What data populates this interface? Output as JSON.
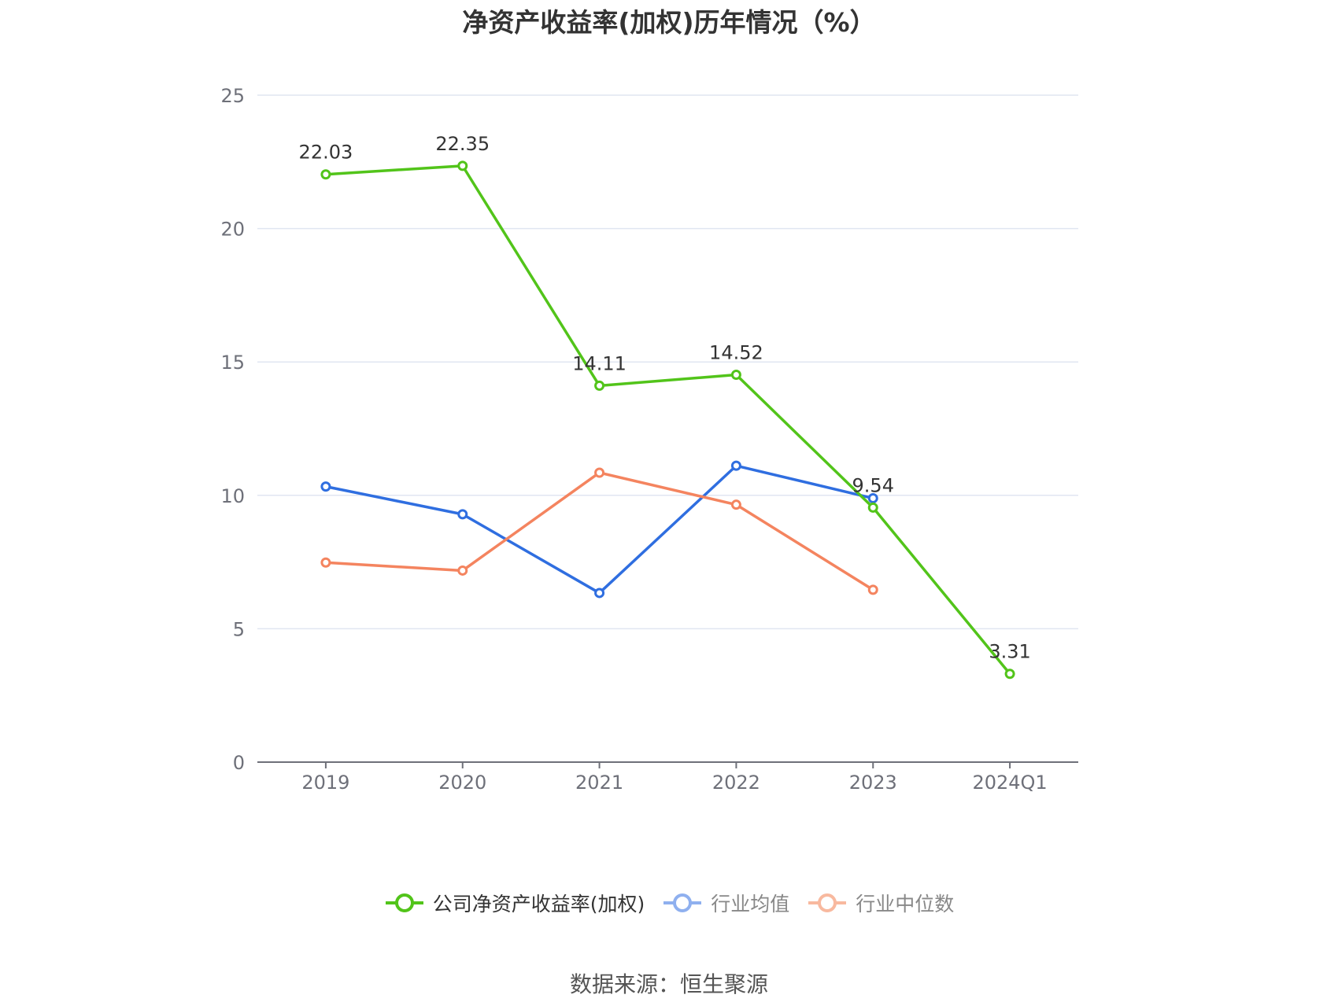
{
  "chart_data": {
    "type": "line",
    "title": "净资产收益率(加权)历年情况（%）",
    "categories": [
      "2019",
      "2020",
      "2021",
      "2022",
      "2023",
      "2024Q1"
    ],
    "ylim": [
      0,
      25
    ],
    "yticks": [
      0,
      5,
      10,
      15,
      20,
      25
    ],
    "grid": true,
    "legend_position": "bottom",
    "series": [
      {
        "name": "公司净资产收益率(加权)",
        "color": "#52c41a",
        "values": [
          22.03,
          22.35,
          14.11,
          14.52,
          9.54,
          3.31
        ],
        "labels": [
          "22.03",
          "22.35",
          "14.11",
          "14.52",
          "9.54",
          "3.31"
        ]
      },
      {
        "name": "行业均值",
        "color": "#2f6ee0",
        "legend_color": "#8fb0ef",
        "values": [
          10.33,
          9.29,
          6.34,
          11.11,
          9.89,
          null
        ]
      },
      {
        "name": "行业中位数",
        "color": "#f4845f",
        "legend_color": "#f8b99f",
        "values": [
          7.48,
          7.18,
          10.85,
          9.65,
          6.46,
          null
        ]
      }
    ]
  },
  "source": "数据来源：恒生聚源"
}
